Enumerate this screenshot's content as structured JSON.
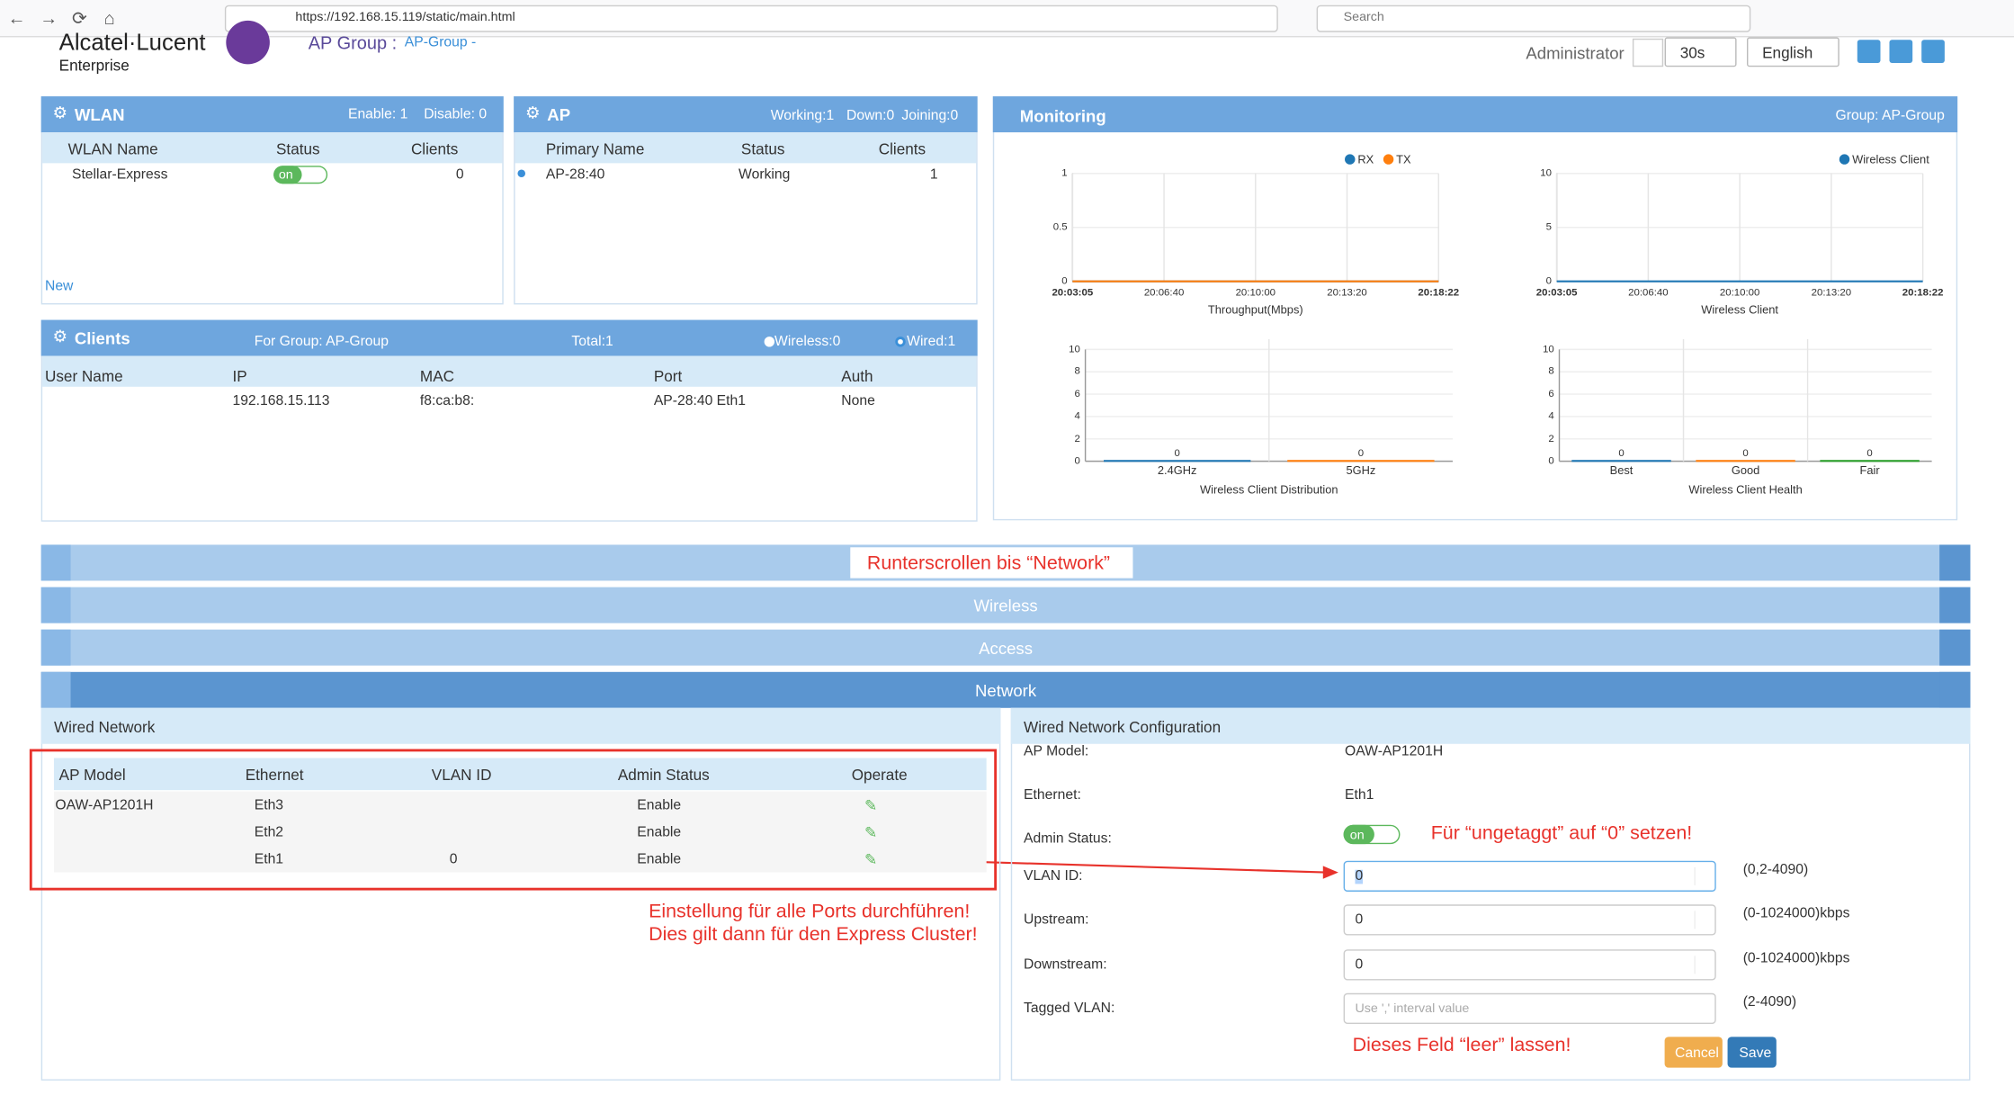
{
  "browser": {
    "url": "https://192.168.15.119/static/main.html",
    "search": "Search"
  },
  "header": {
    "brand": "Alcatel·Lucent",
    "brand_sub": "Enterprise",
    "group_label": "AP Group :",
    "group_value": "AP-Group -",
    "user": "Administrator",
    "refresh": "30s",
    "language": "English"
  },
  "wlan": {
    "title": "WLAN",
    "enable": "Enable: 1",
    "disable": "Disable: 0",
    "columns": [
      "WLAN Name",
      "Status",
      "Clients"
    ],
    "rows": [
      {
        "name": "Stellar-Express",
        "status": "on",
        "clients": "0"
      }
    ],
    "new": "New"
  },
  "ap": {
    "title": "AP",
    "working": "Working:1",
    "down": "Down:0",
    "joining": "Joining:0",
    "columns": [
      "Primary Name",
      "Status",
      "Clients"
    ],
    "rows": [
      {
        "name": "AP-28:40",
        "status": "Working",
        "clients": "1"
      }
    ]
  },
  "clients": {
    "title": "Clients",
    "group": "For Group: AP-Group",
    "total": "Total:1",
    "wireless": "Wireless:0",
    "wired": "Wired:1",
    "columns": [
      "User Name",
      "IP",
      "MAC",
      "Port",
      "Auth"
    ],
    "rows": [
      {
        "ip": "192.168.15.113",
        "mac": "f8:ca:b8:",
        "port": "AP-28:40 Eth1",
        "auth": "None"
      }
    ]
  },
  "monitoring": {
    "title": "Monitoring",
    "group": "Group: AP-Group",
    "charts": [
      {
        "type": "line",
        "legend": [
          "RX",
          "TX"
        ],
        "colors": [
          "#1f77b4",
          "#ff7f0e"
        ],
        "yticks": [
          0,
          0.5,
          1
        ],
        "xticks": [
          "20:03:05",
          "20:06:40",
          "20:10:00",
          "20:13:20",
          "20:18:22"
        ],
        "xlabel": "Throughput(Mbps)"
      },
      {
        "type": "line",
        "legend": [
          "Wireless Client"
        ],
        "colors": [
          "#1f77b4"
        ],
        "yticks": [
          0,
          5,
          10
        ],
        "xticks": [
          "20:03:05",
          "20:06:40",
          "20:10:00",
          "20:13:20",
          "20:18:22"
        ],
        "xlabel": "Wireless Client"
      },
      {
        "type": "bar",
        "yticks": [
          0,
          2,
          4,
          6,
          8,
          10
        ],
        "categories": [
          "2.4GHz",
          "5GHz"
        ],
        "values": [
          0,
          0
        ],
        "colors": [
          "#1f77b4",
          "#ff7f0e"
        ],
        "xlabel": "Wireless Client Distribution"
      },
      {
        "type": "bar",
        "yticks": [
          0,
          2,
          4,
          6,
          8,
          10
        ],
        "categories": [
          "Best",
          "Good",
          "Fair"
        ],
        "values": [
          0,
          0,
          0
        ],
        "colors": [
          "#1f77b4",
          "#ff7f0e",
          "#2ca02c"
        ],
        "xlabel": "Wireless Client Health"
      }
    ]
  },
  "sections": {
    "scroll_note": "Runterscrollen bis “Network”",
    "items": [
      "Wireless",
      "Access",
      "Network"
    ]
  },
  "wired_network": {
    "title": "Wired Network",
    "columns": [
      "AP Model",
      "Ethernet",
      "VLAN ID",
      "Admin Status",
      "Operate"
    ],
    "rows": [
      {
        "model": "OAW-AP1201H",
        "ethernet": "Eth3",
        "status": "Enable"
      },
      {
        "ethernet": "Eth2",
        "status": "Enable"
      },
      {
        "ethernet": "Eth1",
        "vlan": "0",
        "status": "Enable"
      }
    ]
  },
  "config": {
    "title": "Wired Network Configuration",
    "fields": [
      {
        "label": "AP Model:",
        "value": "OAW-AP1201H"
      },
      {
        "label": "Ethernet:",
        "value": "Eth1"
      },
      {
        "label": "Admin Status:",
        "toggle": "on"
      },
      {
        "label": "VLAN ID:",
        "input": "0",
        "range": "(0,2-4090)"
      },
      {
        "label": "Upstream:",
        "input": "0",
        "range": "(0-1024000)kbps"
      },
      {
        "label": "Downstream:",
        "input": "0",
        "range": "(0-1024000)kbps"
      },
      {
        "label": "Tagged VLAN:",
        "placeholder": "Use ',' interval value",
        "range": "(2-4090)"
      }
    ],
    "cancel": "Cancel",
    "save": "Save"
  },
  "annotations": {
    "vlan_note": "Für “ungetaggt” auf “0” setzen!",
    "ports_note_1": "Einstellung für alle Ports durchführen!",
    "ports_note_2": "Dies gilt dann für den Express Cluster!",
    "tagged_note": "Dieses Feld “leer” lassen!"
  }
}
